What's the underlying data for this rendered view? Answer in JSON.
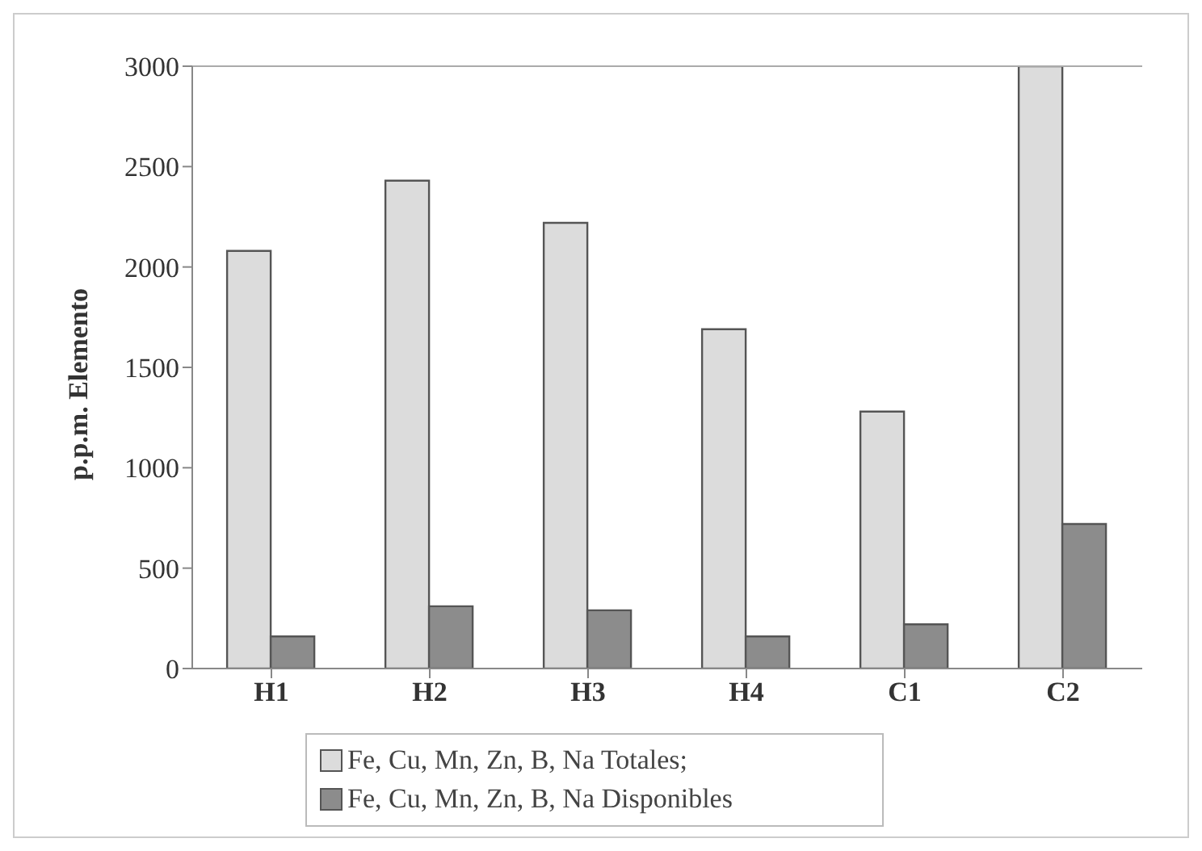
{
  "chart_data": {
    "type": "bar",
    "ylabel": "p.p.m. Elemento",
    "categories": [
      "H1",
      "H2",
      "H3",
      "H4",
      "C1",
      "C2"
    ],
    "series": [
      {
        "name": "Fe, Cu, Mn, Zn, B, Na Totales;",
        "color": "#dcdcdc",
        "values": [
          2080,
          2430,
          2220,
          1690,
          1280,
          3000
        ]
      },
      {
        "name": "Fe, Cu, Mn, Zn, B, Na Disponibles",
        "color": "#8c8c8c",
        "values": [
          160,
          310,
          290,
          160,
          220,
          720
        ]
      }
    ],
    "ylim": [
      0,
      3000
    ],
    "yticks": [
      0,
      500,
      1000,
      1500,
      2000,
      2500,
      3000
    ],
    "grid": false,
    "legend": "bottom"
  }
}
